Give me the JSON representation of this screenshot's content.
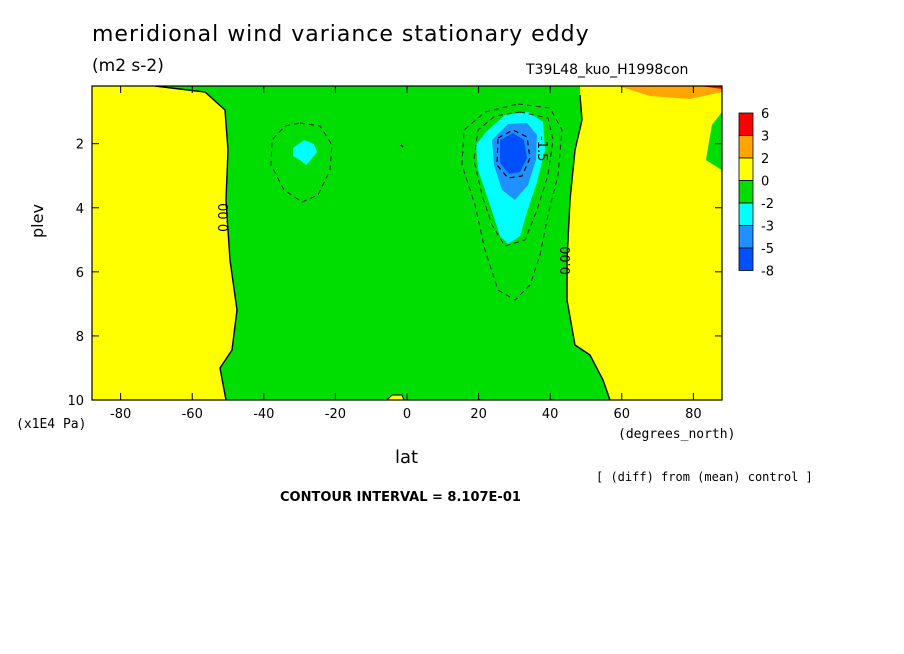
{
  "header": {
    "title": "meridional wind variance  stationary eddy",
    "units": "(m2 s-2)",
    "run_name": "T39L48_kuo_H1998con"
  },
  "footer": {
    "note": "[ (diff) from (mean) control ]",
    "contour_interval": "CONTOUR INTERVAL = 8.107E-01"
  },
  "chart_data": {
    "type": "heatmap",
    "title": "meridional wind variance  stationary eddy",
    "subtitle": "(m2 s-2)",
    "xlabel": "lat",
    "x_units": "(degrees_north)",
    "ylabel": "plev",
    "y_units": "(x1E4 Pa)",
    "xlim": [
      -88,
      88
    ],
    "ylim": [
      10,
      0.2
    ],
    "x_ticks": [
      -80,
      -60,
      -40,
      -20,
      0,
      20,
      40,
      60,
      80
    ],
    "y_ticks": [
      2,
      4,
      6,
      8,
      10
    ],
    "contour_interval": 0.8107,
    "contour_labels": [
      "0.00",
      "0.00",
      "-1.5"
    ],
    "colorbar": {
      "levels": [
        "6",
        "3",
        "2",
        "0",
        "-2",
        "-3",
        "-5",
        "-8"
      ],
      "colors": [
        "#ff0000",
        "#ffa500",
        "#ffff00",
        "#00dd00",
        "#00ffff",
        "#1e90ff",
        "#0050ff"
      ]
    },
    "features": [
      {
        "region": "polar south",
        "value_range": "0 to 2",
        "color": "#ffff00",
        "lat_range": [
          -88,
          -48
        ],
        "plev_range": [
          0.2,
          10
        ]
      },
      {
        "region": "midlatitudes",
        "value_range": "-2 to 0",
        "color": "#00dd00",
        "lat_range": [
          -48,
          50
        ],
        "plev_range": [
          0.2,
          10
        ]
      },
      {
        "region": "minimum near 30S",
        "value_range": "-3 to -2",
        "lat": -29,
        "plev": 2.2
      },
      {
        "region": "minimum near 30N",
        "value_range": "below -5",
        "lat": 29,
        "plev": 2.3
      },
      {
        "region": "polar north",
        "value_range": "0 to 2",
        "color": "#ffff00",
        "lat_range": [
          40,
          88
        ],
        "plev_range": [
          0.2,
          10
        ]
      }
    ]
  }
}
